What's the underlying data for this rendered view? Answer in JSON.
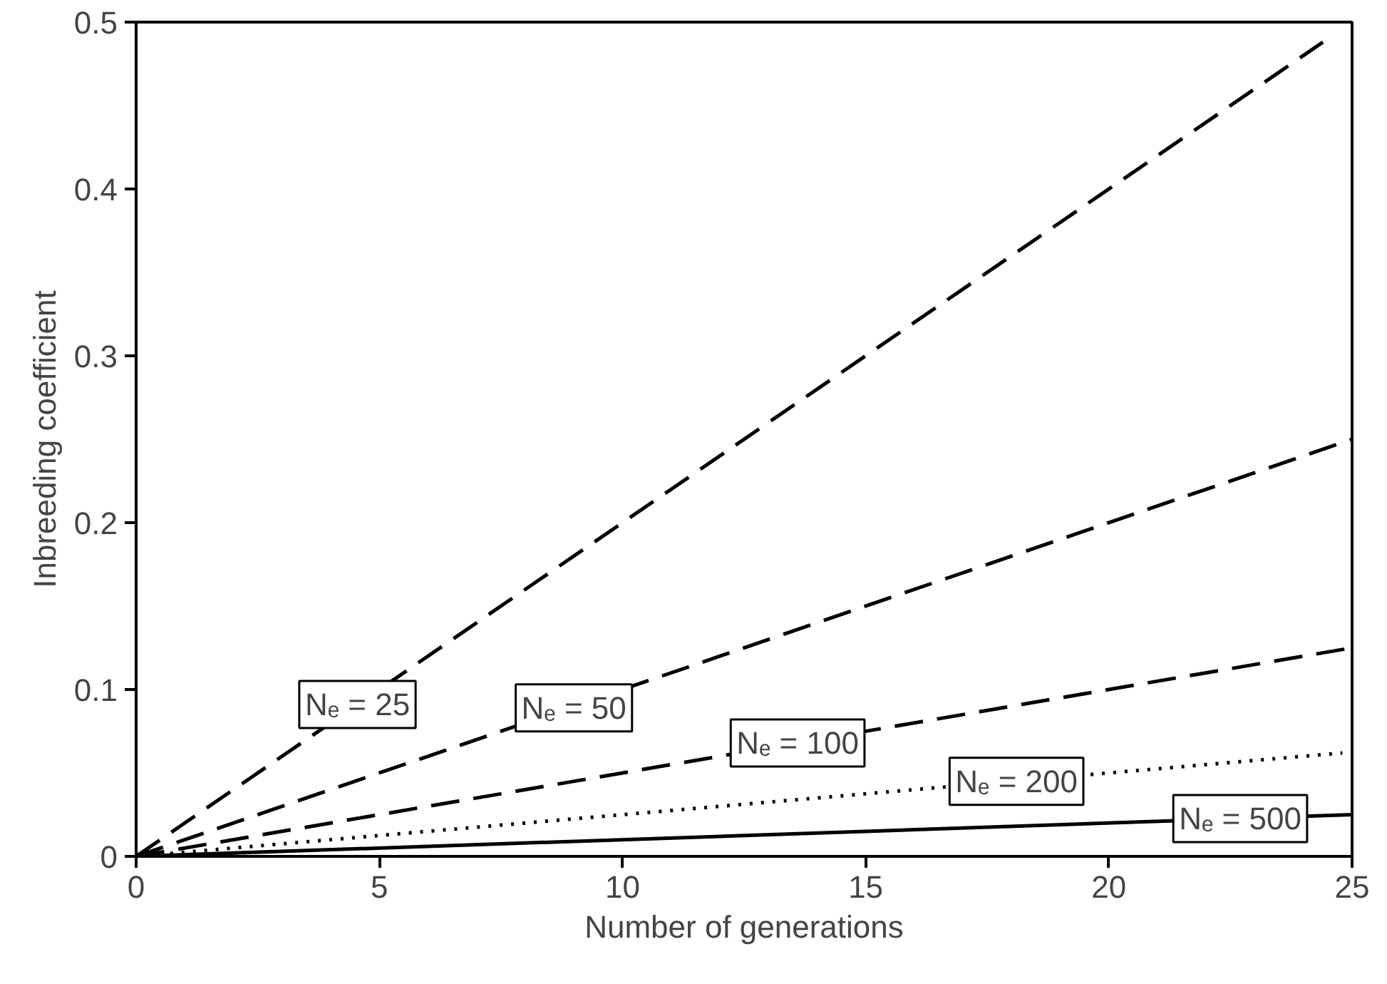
{
  "chart_data": {
    "type": "line",
    "xlabel": "Number of generations",
    "ylabel": "Inbreeding coefficient",
    "xlim": [
      0,
      25
    ],
    "ylim": [
      0,
      0.5
    ],
    "xticks": [
      0,
      5,
      10,
      15,
      20,
      25
    ],
    "yticks": [
      0,
      0.1,
      0.2,
      0.3,
      0.4,
      0.5
    ],
    "grid": false,
    "series": [
      {
        "color": "#000000",
        "x": [
          0,
          24.4
        ],
        "values": [
          0,
          0.488
        ],
        "line_style": "dashed"
      },
      {
        "color": "#000000",
        "x": [
          0,
          25
        ],
        "values": [
          0,
          0.25
        ],
        "line_style": "dashed"
      },
      {
        "color": "#000000",
        "x": [
          0,
          25
        ],
        "values": [
          0,
          0.125
        ],
        "line_style": "dashed"
      },
      {
        "color": "#000000",
        "x": [
          0,
          24.8
        ],
        "values": [
          0,
          0.062
        ],
        "line_style": "dotted"
      },
      {
        "color": "#000000",
        "x": [
          0,
          25
        ],
        "values": [
          0,
          0.025
        ],
        "line_style": "solid"
      }
    ],
    "annotations": [
      {
        "text": "Nₑ = 25",
        "x": 4.55,
        "y": 0.091
      },
      {
        "text": "Nₑ = 50",
        "x": 9.0,
        "y": 0.089
      },
      {
        "text": "Nₑ = 100",
        "x": 13.6,
        "y": 0.068
      },
      {
        "text": "Nₑ = 200",
        "x": 18.1,
        "y": 0.045
      },
      {
        "text": "Nₑ = 500",
        "x": 22.7,
        "y": 0.0227
      }
    ]
  }
}
